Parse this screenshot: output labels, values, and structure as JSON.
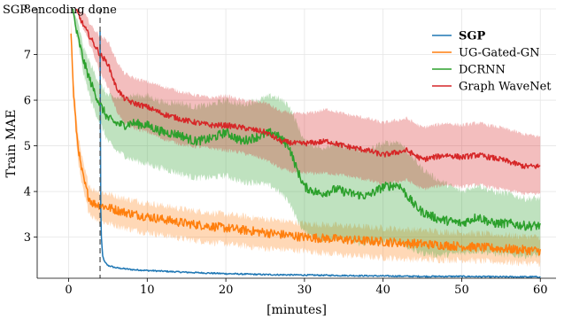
{
  "chart_data": {
    "type": "line",
    "xlabel": "[minutes]",
    "ylabel": "Train MAE",
    "xlim": [
      -4,
      62
    ],
    "ylim": [
      2.1,
      8.0
    ],
    "xticks": [
      0,
      10,
      20,
      30,
      40,
      50,
      60
    ],
    "yticks": [
      3,
      4,
      5,
      6,
      7,
      8
    ],
    "grid": true,
    "legend_position": "top-right",
    "annotation": {
      "text": "SGP encoding done",
      "x": 4,
      "style": "dashed vertical line"
    },
    "series": [
      {
        "name": "SGP",
        "color": "#1f77b4",
        "bold_label": true,
        "noise": 0.015,
        "x": [
          4.0,
          4.05,
          4.1,
          4.3,
          4.6,
          5.0,
          6,
          8,
          10,
          15,
          20,
          25,
          30,
          35,
          40,
          45,
          50,
          55,
          60
        ],
        "y": [
          7.5,
          4.5,
          3.2,
          2.6,
          2.45,
          2.38,
          2.33,
          2.29,
          2.27,
          2.23,
          2.2,
          2.18,
          2.17,
          2.16,
          2.15,
          2.14,
          2.14,
          2.13,
          2.13
        ],
        "y_low": [
          7.5,
          4.5,
          3.2,
          2.6,
          2.45,
          2.38,
          2.33,
          2.29,
          2.27,
          2.23,
          2.2,
          2.18,
          2.17,
          2.16,
          2.15,
          2.14,
          2.14,
          2.13,
          2.13
        ],
        "y_high": [
          7.5,
          4.5,
          3.2,
          2.6,
          2.45,
          2.38,
          2.33,
          2.29,
          2.27,
          2.23,
          2.2,
          2.18,
          2.17,
          2.16,
          2.15,
          2.14,
          2.14,
          2.13,
          2.13
        ]
      },
      {
        "name": "UG-Gated-GN",
        "color": "#ff7f0e",
        "noise": 0.1,
        "x": [
          0.3,
          0.6,
          1.0,
          1.5,
          2.0,
          2.5,
          3,
          4,
          5,
          7,
          10,
          15,
          20,
          25,
          30,
          35,
          40,
          45,
          50,
          55,
          60
        ],
        "y": [
          7.5,
          6.2,
          5.3,
          4.6,
          4.2,
          3.9,
          3.75,
          3.7,
          3.65,
          3.55,
          3.45,
          3.3,
          3.2,
          3.1,
          3.0,
          2.95,
          2.9,
          2.85,
          2.8,
          2.75,
          2.7
        ],
        "y_low": [
          7.5,
          6.0,
          5.0,
          4.3,
          3.9,
          3.6,
          3.45,
          3.35,
          3.3,
          3.2,
          3.1,
          2.95,
          2.85,
          2.75,
          2.7,
          2.6,
          2.55,
          2.5,
          2.5,
          2.45,
          2.42
        ],
        "y_high": [
          7.8,
          6.5,
          5.6,
          4.9,
          4.5,
          4.2,
          4.05,
          4.0,
          3.95,
          3.85,
          3.75,
          3.6,
          3.5,
          3.4,
          3.3,
          3.25,
          3.2,
          3.15,
          3.1,
          3.05,
          3.0
        ]
      },
      {
        "name": "DCRNN",
        "color": "#2ca02c",
        "noise": 0.1,
        "x": [
          0.5,
          1,
          2,
          3,
          4,
          5,
          6,
          7,
          8,
          10,
          12,
          14,
          16,
          18,
          20,
          22,
          24,
          26,
          28,
          29,
          30,
          32,
          34,
          36,
          38,
          40,
          42,
          44,
          45,
          47,
          50,
          52,
          54,
          56,
          58,
          60
        ],
        "y": [
          8.0,
          7.5,
          6.8,
          6.3,
          5.9,
          5.6,
          5.5,
          5.45,
          5.5,
          5.45,
          5.3,
          5.25,
          5.1,
          5.15,
          5.3,
          5.1,
          5.2,
          5.3,
          5.0,
          4.5,
          4.1,
          3.95,
          4.05,
          3.95,
          3.9,
          4.1,
          4.15,
          3.7,
          3.55,
          3.4,
          3.3,
          3.45,
          3.3,
          3.3,
          3.25,
          3.25
        ],
        "y_low": [
          8.0,
          7.4,
          6.5,
          5.9,
          5.5,
          5.1,
          4.9,
          4.8,
          4.7,
          4.6,
          4.5,
          4.4,
          4.3,
          4.3,
          4.35,
          4.2,
          4.2,
          4.1,
          3.8,
          3.4,
          3.1,
          2.95,
          2.95,
          2.9,
          2.85,
          2.9,
          2.9,
          2.7,
          2.65,
          2.6,
          2.65,
          2.7,
          2.65,
          2.6,
          2.6,
          2.6
        ],
        "y_high": [
          8.0,
          7.8,
          7.1,
          6.7,
          6.35,
          6.1,
          6.05,
          6.05,
          6.1,
          6.1,
          5.95,
          5.95,
          5.85,
          5.9,
          6.0,
          5.9,
          6.0,
          6.1,
          5.9,
          5.5,
          5.1,
          4.95,
          5.05,
          4.95,
          4.9,
          5.05,
          5.1,
          4.7,
          4.5,
          4.25,
          4.0,
          4.15,
          4.0,
          3.95,
          3.85,
          3.85
        ]
      },
      {
        "name": "Graph WaveNet",
        "color": "#d62728",
        "noise": 0.06,
        "x": [
          1,
          2,
          3,
          4,
          5,
          6,
          7,
          8,
          10,
          12,
          15,
          18,
          20,
          22,
          25,
          27,
          29,
          30,
          33,
          35,
          38,
          40,
          43,
          45,
          48,
          50,
          52,
          55,
          58,
          60
        ],
        "y": [
          7.95,
          7.6,
          7.3,
          7.0,
          6.8,
          6.3,
          6.05,
          5.95,
          5.85,
          5.7,
          5.55,
          5.45,
          5.45,
          5.4,
          5.3,
          5.1,
          5.05,
          5.05,
          5.1,
          5.0,
          4.9,
          4.8,
          4.9,
          4.7,
          4.8,
          4.75,
          4.8,
          4.7,
          4.55,
          4.55
        ],
        "y_low": [
          7.95,
          7.5,
          7.1,
          6.6,
          6.3,
          5.8,
          5.5,
          5.4,
          5.3,
          5.15,
          5.0,
          4.95,
          4.9,
          4.85,
          4.7,
          4.5,
          4.4,
          4.4,
          4.4,
          4.35,
          4.25,
          4.15,
          4.25,
          4.05,
          4.15,
          4.1,
          4.15,
          4.05,
          3.95,
          3.95
        ],
        "y_high": [
          8.0,
          7.9,
          7.6,
          7.4,
          7.3,
          6.9,
          6.6,
          6.5,
          6.4,
          6.3,
          6.15,
          6.05,
          6.1,
          6.0,
          5.95,
          5.75,
          5.7,
          5.7,
          5.8,
          5.7,
          5.6,
          5.5,
          5.6,
          5.4,
          5.5,
          5.45,
          5.5,
          5.4,
          5.25,
          5.2
        ]
      }
    ]
  }
}
